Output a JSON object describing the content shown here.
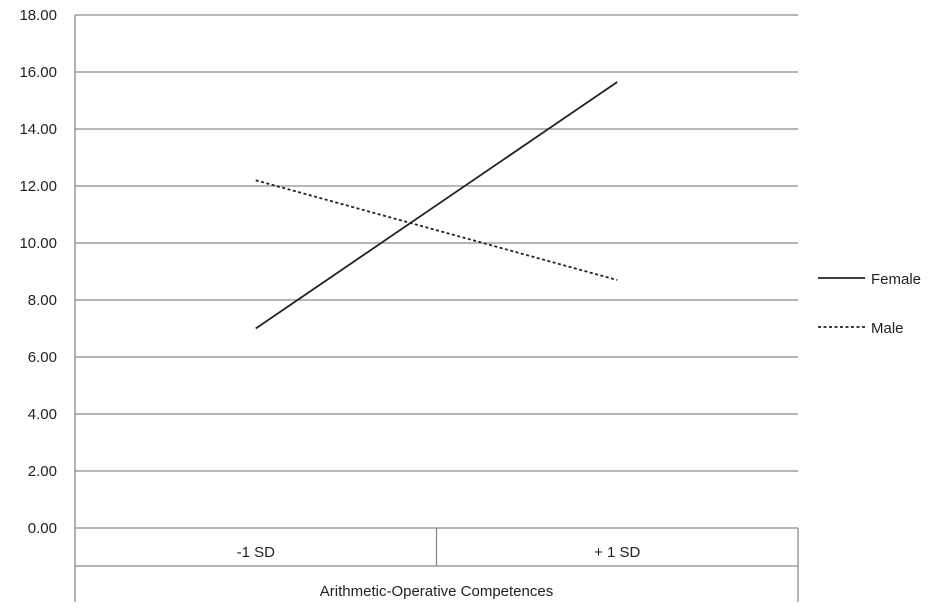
{
  "chart_data": {
    "type": "line",
    "categories": [
      "-1 SD",
      "+ 1 SD"
    ],
    "xlabel": "Arithmetic-Operative Competences",
    "ylabel": "",
    "ylim": [
      0,
      18
    ],
    "yticks": [
      "0.00",
      "2.00",
      "4.00",
      "6.00",
      "8.00",
      "10.00",
      "12.00",
      "14.00",
      "16.00",
      "18.00"
    ],
    "grid": true,
    "legend_position": "right",
    "series": [
      {
        "name": "Female",
        "values": [
          7.0,
          15.65
        ],
        "style": "solid",
        "color": "#222222"
      },
      {
        "name": "Male",
        "values": [
          12.2,
          8.7
        ],
        "style": "dashed",
        "color": "#222222"
      }
    ]
  }
}
